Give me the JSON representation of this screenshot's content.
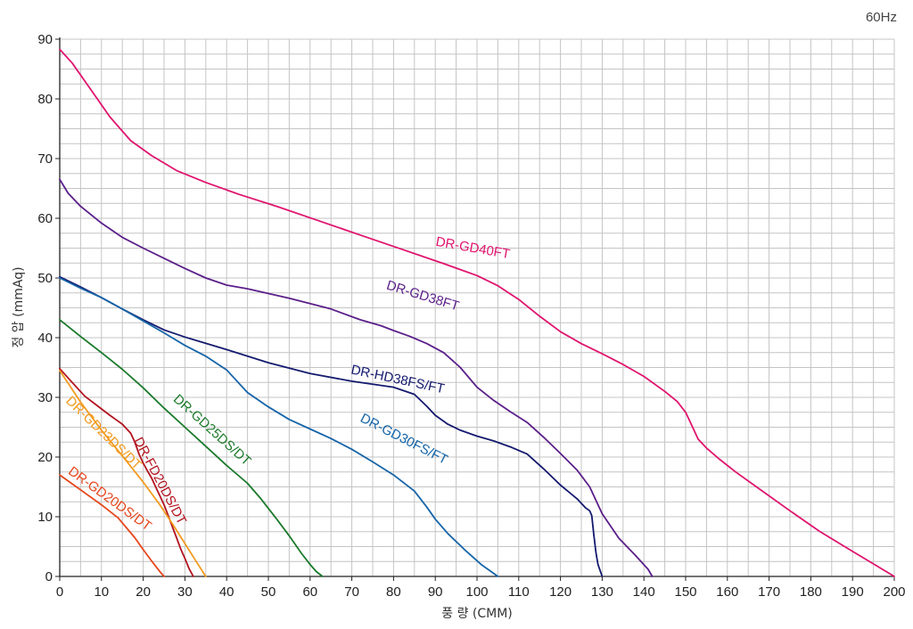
{
  "chart_data": {
    "type": "line",
    "title": "",
    "note": "60Hz",
    "xlabel": "풍 량 (CMM)",
    "ylabel": "정 압 (mmAq)",
    "xlim": [
      0,
      200
    ],
    "ylim": [
      0,
      90
    ],
    "xticks": [
      0,
      10,
      20,
      30,
      40,
      50,
      60,
      70,
      80,
      90,
      100,
      110,
      120,
      130,
      140,
      150,
      160,
      170,
      180,
      190,
      200
    ],
    "yticks": [
      0,
      10,
      20,
      30,
      40,
      50,
      60,
      70,
      80,
      90
    ],
    "grid": true,
    "series": [
      {
        "name": "DR-GD40FT",
        "color": "#e0146e",
        "label_at": [
          99,
          55
        ],
        "label_angle": 10,
        "x": [
          0,
          3,
          7,
          12,
          17,
          22,
          28,
          35,
          43,
          52,
          62,
          72,
          82,
          92,
          100,
          105,
          110,
          115,
          120,
          125,
          130,
          135,
          140,
          145,
          148,
          150,
          151,
          152,
          153,
          155,
          158,
          162,
          168,
          175,
          182,
          190,
          195,
          200
        ],
        "y": [
          88.3,
          86,
          82,
          77,
          73,
          70.5,
          68,
          66,
          64,
          62,
          59.6,
          57.2,
          54.8,
          52.4,
          50.4,
          48.7,
          46.4,
          43.6,
          41,
          39,
          37.3,
          35.5,
          33.5,
          31,
          29.3,
          27.5,
          26,
          24.5,
          23,
          21.5,
          19.7,
          17.5,
          14.5,
          11,
          7.6,
          4.2,
          2.1,
          0
        ]
      },
      {
        "name": "DR-GD38FT",
        "color": "#5b1f8a",
        "label_at": [
          87,
          47
        ],
        "label_angle": 17,
        "x": [
          0,
          2,
          5,
          10,
          15,
          20,
          25,
          30,
          35,
          40,
          45,
          55,
          65,
          72,
          77,
          80,
          84,
          88,
          92,
          96,
          100,
          104,
          108,
          112,
          116,
          120,
          124,
          127,
          130,
          134,
          138,
          141,
          142
        ],
        "y": [
          66.5,
          64.2,
          62,
          59.2,
          56.8,
          55,
          53.3,
          51.6,
          50,
          48.8,
          48.2,
          46.6,
          44.8,
          43,
          42,
          41.2,
          40.2,
          39,
          37.5,
          35,
          31.7,
          29.5,
          27.6,
          25.8,
          23.3,
          20.6,
          17.8,
          15,
          10.5,
          6.4,
          3.5,
          1.2,
          0
        ]
      },
      {
        "name": "DR-HD38FS/FT",
        "color": "#141a6e",
        "label_at": [
          81,
          33
        ],
        "label_angle": 12,
        "x": [
          0,
          5,
          10,
          15,
          20,
          25,
          30,
          40,
          50,
          60,
          70,
          80,
          85,
          88,
          90,
          93,
          96,
          100,
          104,
          108,
          112,
          116,
          120,
          124,
          126,
          127,
          127.5,
          128,
          128.5,
          129,
          130
        ],
        "y": [
          50.2,
          48.5,
          46.7,
          44.8,
          43,
          41.3,
          40.1,
          38,
          35.8,
          34,
          32.7,
          31.7,
          30.5,
          28.5,
          27,
          25.5,
          24.5,
          23.5,
          22.7,
          21.7,
          20.5,
          18,
          15.3,
          13,
          11.5,
          11,
          10.2,
          7,
          4,
          2,
          0
        ]
      },
      {
        "name": "DR-GD30FS/FT",
        "color": "#1564a8",
        "label_at": [
          82.5,
          23
        ],
        "label_angle": 27,
        "x": [
          0,
          5,
          10,
          15,
          20,
          25,
          30,
          35,
          40,
          45,
          50,
          55,
          60,
          65,
          70,
          75,
          80,
          85,
          88,
          90,
          93,
          97,
          101,
          105
        ],
        "y": [
          50,
          48.3,
          46.7,
          44.8,
          42.8,
          40.8,
          38.7,
          36.9,
          34.6,
          30.8,
          28.4,
          26.3,
          24.7,
          23.1,
          21.3,
          19.2,
          17,
          14.3,
          11.6,
          9.6,
          7.2,
          4.5,
          2,
          0
        ]
      },
      {
        "name": "DR-GD25DS/DT",
        "color": "#1b7a2b",
        "label_at": [
          36.5,
          24.5
        ],
        "label_angle": 42,
        "x": [
          0,
          5,
          10,
          15,
          20,
          25,
          30,
          35,
          40,
          45,
          48,
          52,
          55,
          58,
          60,
          61.5,
          63
        ],
        "y": [
          43,
          40.2,
          37.5,
          34.7,
          31.6,
          28.2,
          25,
          21.8,
          18.6,
          15.6,
          13.2,
          9.6,
          6.8,
          3.8,
          2,
          0.8,
          0
        ]
      },
      {
        "name": "DR-FD20DS/DT",
        "color": "#b3121e",
        "label_at": [
          24,
          16
        ],
        "label_angle": 62,
        "x": [
          0,
          3,
          6,
          9,
          12,
          15,
          17,
          18,
          19,
          20,
          21,
          22,
          23,
          24,
          25,
          26,
          27,
          28,
          29,
          30,
          31,
          32
        ],
        "y": [
          34.8,
          32.5,
          30.2,
          28.6,
          27,
          25.5,
          24,
          22.5,
          20.5,
          19,
          17.7,
          16.5,
          15,
          13.5,
          12,
          10.2,
          8.3,
          6.5,
          4.6,
          3,
          1.3,
          0
        ]
      },
      {
        "name": "DR-GD23DS/DT",
        "color": "#f29a1e",
        "label_at": [
          10.5,
          24
        ],
        "label_angle": 44,
        "x": [
          0,
          5,
          10,
          15,
          20,
          24,
          27,
          30,
          33,
          35
        ],
        "y": [
          34.5,
          29.2,
          24.5,
          20.2,
          15.8,
          12,
          8.8,
          5.5,
          2.2,
          0
        ]
      },
      {
        "name": "DR-GD20DS/DT",
        "color": "#e6461c",
        "label_at": [
          12,
          13
        ],
        "label_angle": 36,
        "x": [
          0,
          3,
          6,
          10,
          14,
          18,
          20,
          22,
          24,
          25
        ],
        "y": [
          17,
          15.5,
          14,
          12,
          9.8,
          6.5,
          4.5,
          2.6,
          0.8,
          0
        ]
      }
    ]
  }
}
